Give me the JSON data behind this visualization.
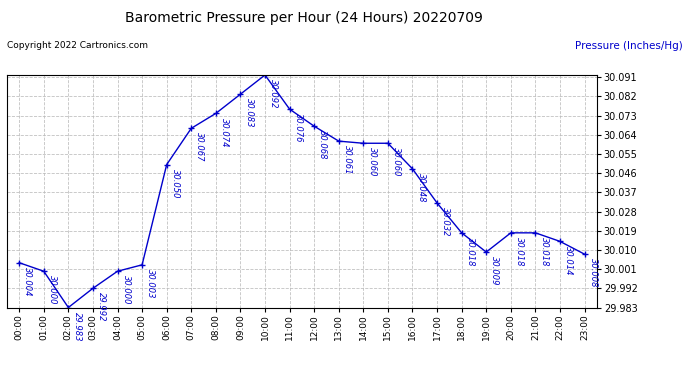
{
  "title": "Barometric Pressure per Hour (24 Hours) 20220709",
  "copyright": "Copyright 2022 Cartronics.com",
  "ylabel": "Pressure (Inches/Hg)",
  "hours": [
    "00:00",
    "01:00",
    "02:00",
    "03:00",
    "04:00",
    "05:00",
    "06:00",
    "07:00",
    "08:00",
    "09:00",
    "10:00",
    "11:00",
    "12:00",
    "13:00",
    "14:00",
    "15:00",
    "16:00",
    "17:00",
    "18:00",
    "19:00",
    "20:00",
    "21:00",
    "22:00",
    "23:00"
  ],
  "values": [
    30.004,
    30.0,
    29.983,
    29.992,
    30.0,
    30.003,
    30.05,
    30.067,
    30.074,
    30.083,
    30.092,
    30.076,
    30.068,
    30.061,
    30.06,
    30.06,
    30.048,
    30.032,
    30.018,
    30.009,
    30.018,
    30.018,
    30.014,
    30.008
  ],
  "line_color": "#0000cc",
  "marker_color": "#0000cc",
  "bg_color": "#ffffff",
  "grid_color": "#bbbbbb",
  "text_color_black": "#000000",
  "text_color_blue": "#0000cc",
  "ylim_min": 29.983,
  "ylim_max": 30.092,
  "ytick_interval": 0.009,
  "fig_width": 6.9,
  "fig_height": 3.75,
  "dpi": 100
}
